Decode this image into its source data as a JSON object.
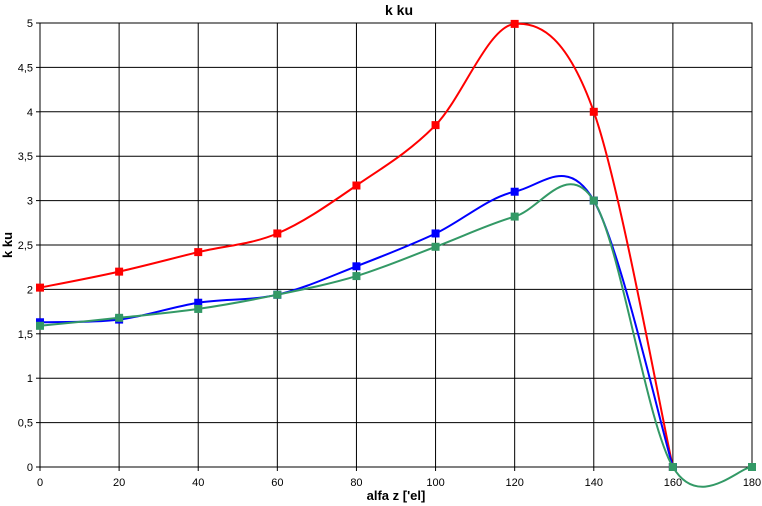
{
  "chart_data": {
    "type": "line",
    "title": "k ku",
    "xlabel": "alfa z ['el]",
    "ylabel": "k ku",
    "xlim": [
      0,
      180
    ],
    "ylim": [
      0,
      5
    ],
    "x_ticks": [
      0,
      20,
      40,
      60,
      80,
      100,
      120,
      140,
      160,
      180
    ],
    "y_ticks": [
      0,
      0.5,
      1,
      1.5,
      2,
      2.5,
      3,
      3.5,
      4,
      4.5,
      5
    ],
    "y_tick_labels": [
      "0",
      "0,5",
      "1",
      "1,5",
      "2",
      "2,5",
      "3",
      "3,5",
      "4",
      "4,5",
      "5"
    ],
    "grid": true,
    "legend": "none",
    "series": [
      {
        "color": "#ff0000",
        "marker": "square",
        "points": [
          [
            0,
            2.02
          ],
          [
            20,
            2.2
          ],
          [
            40,
            2.42
          ],
          [
            60,
            2.63
          ],
          [
            80,
            3.17
          ],
          [
            100,
            3.85
          ],
          [
            120,
            4.99
          ],
          [
            140,
            4.0
          ],
          [
            160,
            0.0
          ]
        ]
      },
      {
        "color": "#0000ff",
        "marker": "square",
        "points": [
          [
            0,
            1.63
          ],
          [
            20,
            1.66
          ],
          [
            40,
            1.85
          ],
          [
            60,
            1.94
          ],
          [
            80,
            2.26
          ],
          [
            100,
            2.63
          ],
          [
            120,
            3.1
          ],
          [
            140,
            3.0
          ],
          [
            160,
            0.0
          ]
        ]
      },
      {
        "color": "#339966",
        "marker": "square",
        "points": [
          [
            0,
            1.59
          ],
          [
            20,
            1.68
          ],
          [
            40,
            1.78
          ],
          [
            60,
            1.94
          ],
          [
            80,
            2.15
          ],
          [
            100,
            2.48
          ],
          [
            120,
            2.82
          ],
          [
            140,
            3.0
          ],
          [
            160,
            0.0
          ],
          [
            180,
            0.0
          ]
        ]
      }
    ]
  }
}
